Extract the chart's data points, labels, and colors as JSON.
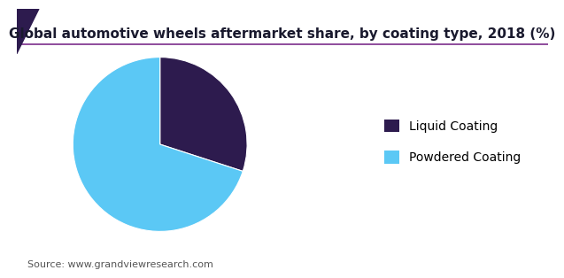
{
  "title": "Global automotive wheels aftermarket share, by coating type, 2018 (%)",
  "slices": [
    30.0,
    70.0
  ],
  "labels": [
    "Liquid Coating",
    "Powdered Coating"
  ],
  "colors": [
    "#2d1b4e",
    "#5bc8f5"
  ],
  "startangle": 90,
  "source": "Source: www.grandviewresearch.com",
  "title_fontsize": 11,
  "legend_fontsize": 10,
  "source_fontsize": 8,
  "triangle_color": "#2d1b4e",
  "line_color": "#7b2d8b",
  "background_color": "#ffffff"
}
